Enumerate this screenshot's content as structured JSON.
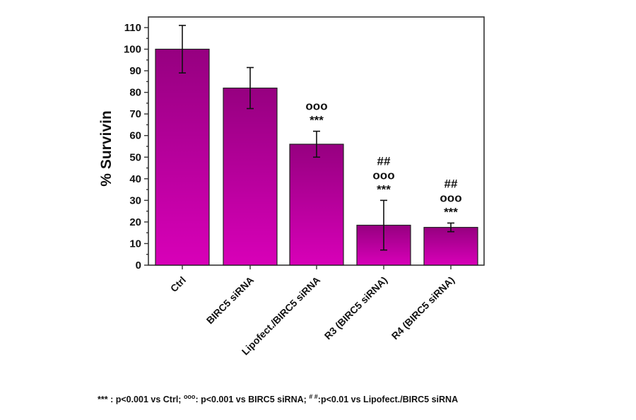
{
  "chart_data": {
    "type": "bar",
    "title": "",
    "xlabel": "",
    "ylabel": "% Survivin",
    "ylim": [
      0,
      115
    ],
    "yticks": [
      0,
      10,
      20,
      30,
      40,
      50,
      60,
      70,
      80,
      90,
      100,
      110
    ],
    "grid": false,
    "legend": null,
    "categories": [
      "Ctrl",
      "BIRC5 siRNA",
      "Lipofect./BIRC5 siRNA",
      "R3 (BIRC5 siRNA)",
      "R4 (BIRC5 siRNA)"
    ],
    "values": [
      100,
      82,
      56,
      18.5,
      17.5
    ],
    "error": [
      11,
      9.5,
      6,
      11.5,
      2
    ],
    "annotations": [
      [],
      [],
      [
        "ooo",
        "***"
      ],
      [
        "##",
        "ooo",
        "***"
      ],
      [
        "##",
        "ooo",
        "***"
      ]
    ],
    "bar_color_top": "#960080",
    "bar_color_bottom": "#d800b8",
    "footnote": {
      "part1_mark": "***",
      "part1_text": " : p<0.001 vs Ctrl; ",
      "part2_mark": "ooo",
      "part2_text": ": p<0.001 vs BIRC5 siRNA; ",
      "part3_mark": "# #",
      "part3_text": ":p<0.01 vs Lipofect./BIRC5 siRNA"
    }
  }
}
